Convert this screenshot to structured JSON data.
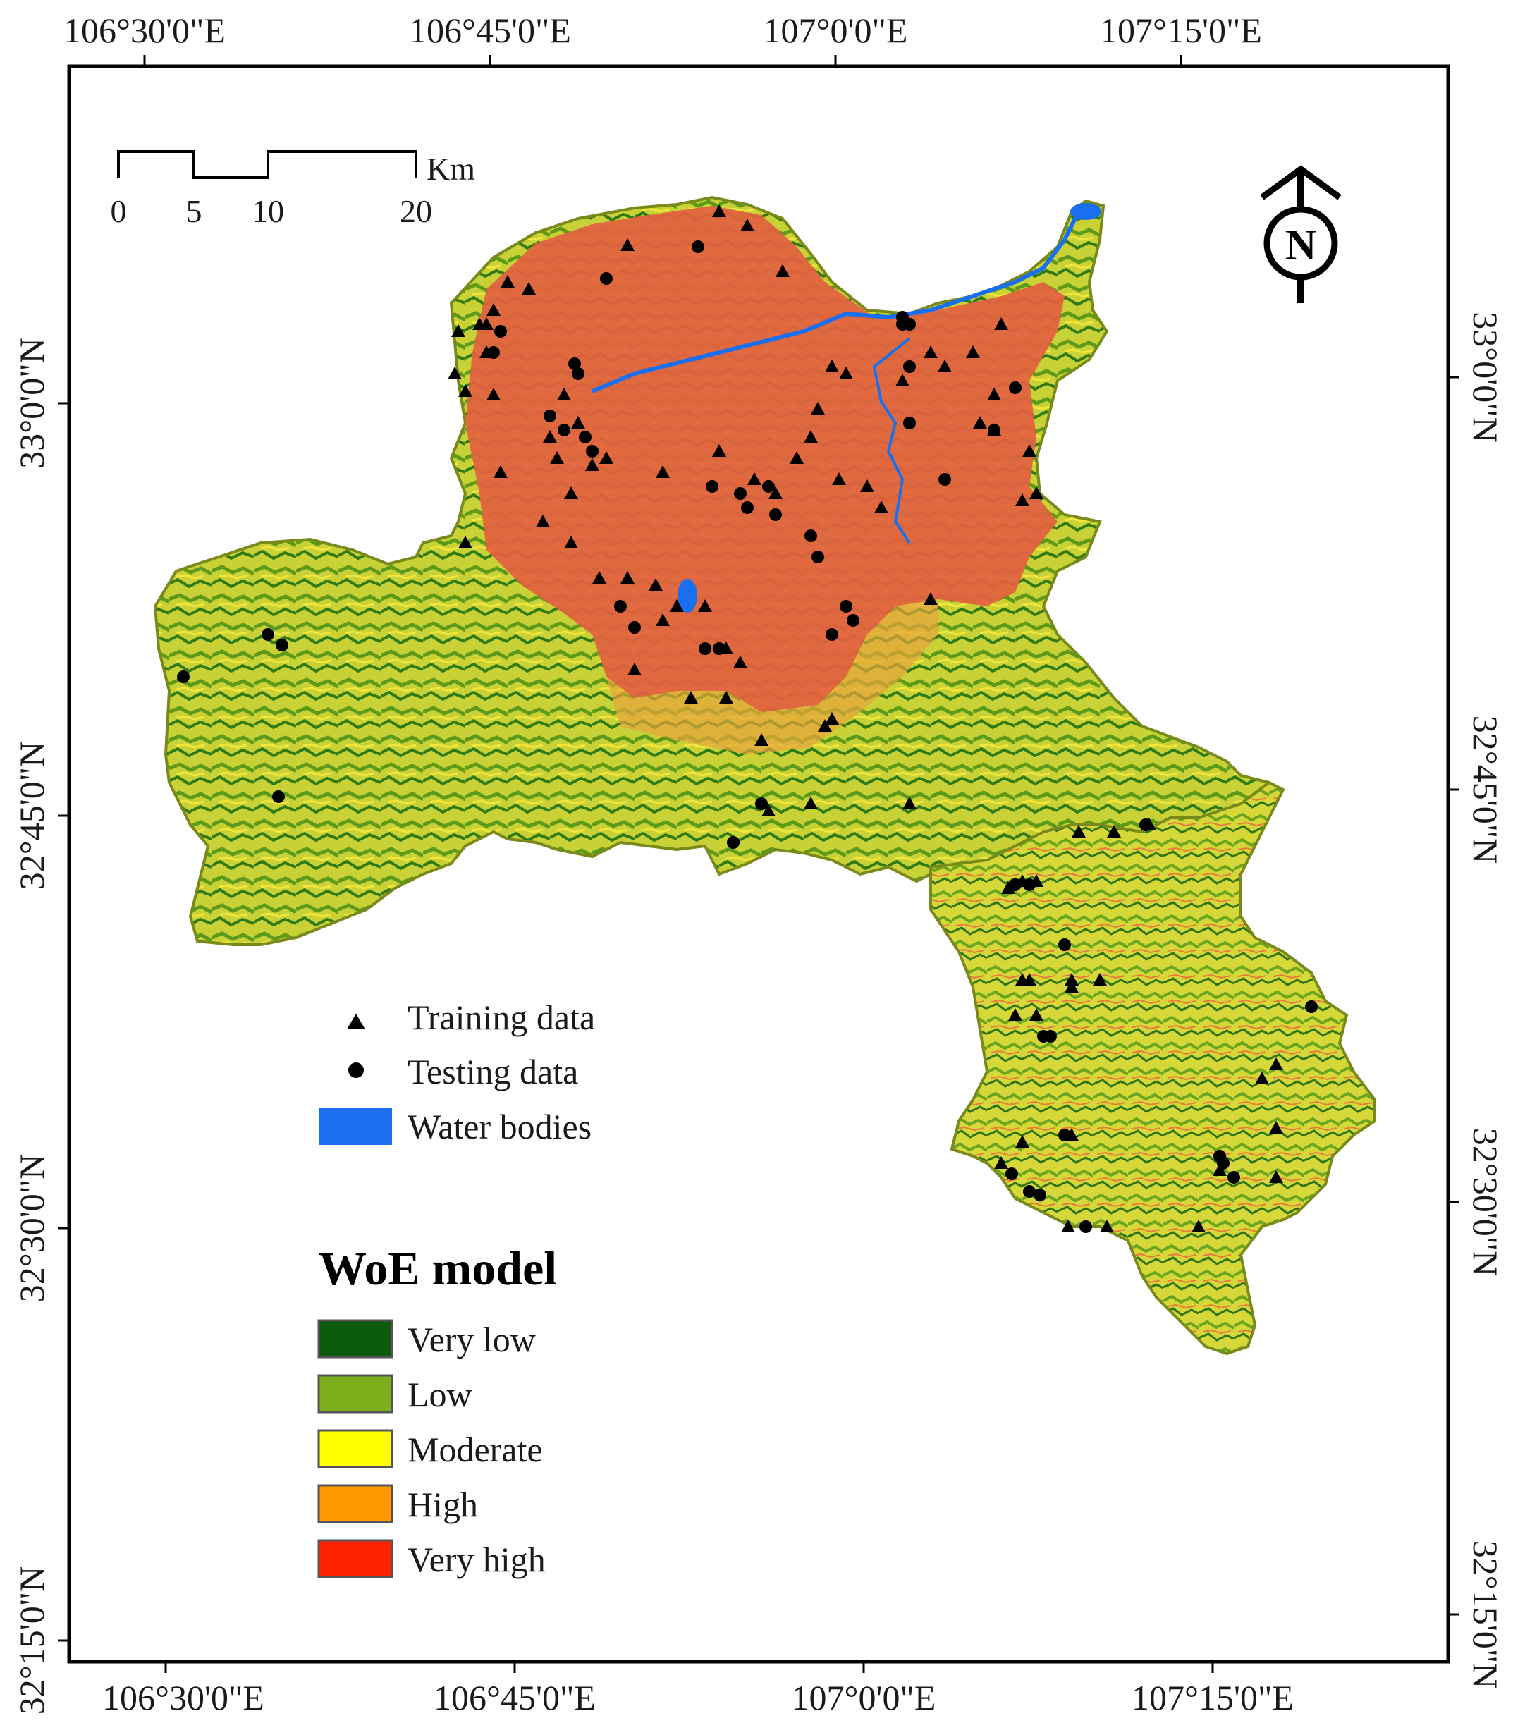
{
  "map": {
    "top_axis_labels": [
      "106°30'0\"E",
      "106°45'0\"E",
      "107°0'0\"E",
      "107°15'0\"E"
    ],
    "bottom_axis_labels": [
      "106°30'0\"E",
      "106°45'0\"E",
      "107°0'0\"E",
      "107°15'0\"E"
    ],
    "left_axis_labels": [
      "33°0'0\"N",
      "32°45'0\"N",
      "32°30'0\"N",
      "32°15'0\"N"
    ],
    "right_axis_labels": [
      "33°0'0\"N",
      "32°45'0\"N",
      "32°30'0\"N",
      "32°15'0\"N"
    ],
    "scale_bar": {
      "ticks": [
        "0",
        "5",
        "10",
        "20"
      ],
      "unit": "Km"
    },
    "north_arrow": {
      "letter": "N",
      "icon": "north-arrow-icon"
    },
    "point_legend": {
      "training_label": "Training data",
      "testing_label": "Testing data",
      "water_label": "Water bodies",
      "water_color": "#1a6ff0"
    },
    "model_legend": {
      "title": "WoE model",
      "classes": [
        {
          "label": "Very low",
          "color": "#0d5c0d"
        },
        {
          "label": "Low",
          "color": "#7aae1a"
        },
        {
          "label": "Moderate",
          "color": "#ffff00"
        },
        {
          "label": "High",
          "color": "#ff9900"
        },
        {
          "label": "Very high",
          "color": "#ff2200"
        }
      ]
    }
  }
}
